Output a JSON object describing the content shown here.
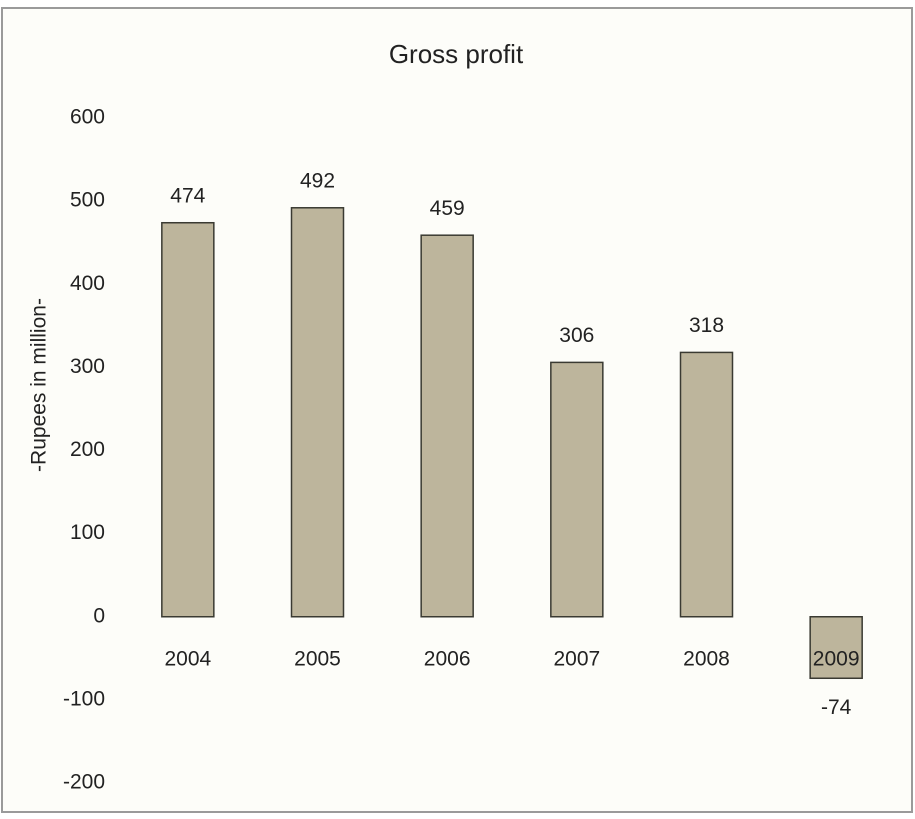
{
  "chart_data": {
    "type": "bar",
    "title": "Gross profit",
    "y_label": "-Rupees in million-",
    "categories": [
      "2004",
      "2005",
      "2006",
      "2007",
      "2008",
      "2009"
    ],
    "values": [
      474,
      492,
      459,
      306,
      318,
      -74
    ],
    "color": "#bdb59c",
    "ylim": [
      -200,
      600
    ],
    "yticks": [
      -200,
      -100,
      0,
      100,
      200,
      300,
      400,
      500,
      600
    ],
    "grid": false
  }
}
